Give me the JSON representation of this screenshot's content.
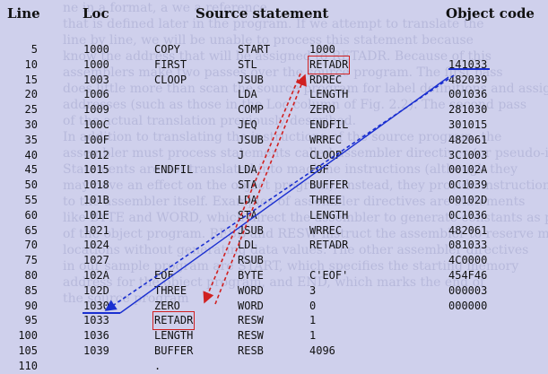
{
  "background_text": [
    "ne in a format, a we a reference",
    "that is defined later in the program. If we attempt to translate the",
    "line by line, we will be unable to process this statement because",
    "know the address that will be assigned to RETADR. Because of this",
    "assemblers make two passes over the source program. The first pass",
    "does little more than scan the source program for label definitions and assign",
    "addresses (such as those in the Loc column of Fig. 2.2). The second pass",
    "of the actual translation previously described.",
    "In addition to translating the instructions of the source program, the",
    "assembler must process statements called assembler directives (or pseudo-instructions).",
    "Statements are not translated into machine instructions (although they",
    "may have an effect on the object program). Instead, they provide instructions",
    "to the assembler itself. Examples of assembler directives are statements",
    "like BYTE and WORD, which direct the assembler to generate constants as part",
    "of the object program. RESB and RESW instruct the assembler to reserve memory",
    "locations without generating data values. The other assembler directives",
    "in our sample program are START, which specifies the starting memory",
    "address for the object program, and END, which marks the end of",
    "the source program"
  ],
  "headers": {
    "line": "Line",
    "loc": "Loc",
    "source": "Source statement",
    "object": "Object code"
  },
  "rows": [
    {
      "line": "5",
      "loc": "1000",
      "label": "COPY",
      "op": "START",
      "operand": "1000",
      "obj": ""
    },
    {
      "line": "10",
      "loc": "1000",
      "label": "FIRST",
      "op": "STL",
      "operand": "RETADR",
      "obj": "141033"
    },
    {
      "line": "15",
      "loc": "1003",
      "label": "CLOOP",
      "op": "JSUB",
      "operand": "RDREC",
      "obj": "482039"
    },
    {
      "line": "20",
      "loc": "1006",
      "label": "",
      "op": "LDA",
      "operand": "LENGTH",
      "obj": "001036"
    },
    {
      "line": "25",
      "loc": "1009",
      "label": "",
      "op": "COMP",
      "operand": "ZERO",
      "obj": "281030"
    },
    {
      "line": "30",
      "loc": "100C",
      "label": "",
      "op": "JEQ",
      "operand": "ENDFIL",
      "obj": "301015"
    },
    {
      "line": "35",
      "loc": "100F",
      "label": "",
      "op": "JSUB",
      "operand": "WRREC",
      "obj": "482061"
    },
    {
      "line": "40",
      "loc": "1012",
      "label": "",
      "op": "J",
      "operand": "CLOOP",
      "obj": "3C1003"
    },
    {
      "line": "45",
      "loc": "1015",
      "label": "ENDFIL",
      "op": "LDA",
      "operand": "EOF",
      "obj": "00102A"
    },
    {
      "line": "50",
      "loc": "1018",
      "label": "",
      "op": "STA",
      "operand": "BUFFER",
      "obj": "0C1039"
    },
    {
      "line": "55",
      "loc": "101B",
      "label": "",
      "op": "LDA",
      "operand": "THREE",
      "obj": "00102D"
    },
    {
      "line": "60",
      "loc": "101E",
      "label": "",
      "op": "STA",
      "operand": "LENGTH",
      "obj": "0C1036"
    },
    {
      "line": "65",
      "loc": "1021",
      "label": "",
      "op": "JSUB",
      "operand": "WRREC",
      "obj": "482061"
    },
    {
      "line": "70",
      "loc": "1024",
      "label": "",
      "op": "LDL",
      "operand": "RETADR",
      "obj": "081033"
    },
    {
      "line": "75",
      "loc": "1027",
      "label": "",
      "op": "RSUB",
      "operand": "",
      "obj": "4C0000"
    },
    {
      "line": "80",
      "loc": "102A",
      "label": "EOF",
      "op": "BYTE",
      "operand": "C'EOF'",
      "obj": "454F46"
    },
    {
      "line": "85",
      "loc": "102D",
      "label": "THREE",
      "op": "WORD",
      "operand": "3",
      "obj": "000003"
    },
    {
      "line": "90",
      "loc": "1030",
      "label": "ZERO",
      "op": "WORD",
      "operand": "0",
      "obj": "000000"
    },
    {
      "line": "95",
      "loc": "1033",
      "label": "RETADR",
      "op": "RESW",
      "operand": "1",
      "obj": ""
    },
    {
      "line": "100",
      "loc": "1036",
      "label": "LENGTH",
      "op": "RESW",
      "operand": "1",
      "obj": ""
    },
    {
      "line": "105",
      "loc": "1039",
      "label": "BUFFER",
      "op": "RESB",
      "operand": "4096",
      "obj": ""
    },
    {
      "line": "110",
      "loc": "",
      "label": ".",
      "op": "",
      "operand": "",
      "obj": ""
    }
  ],
  "colors": {
    "background": "#cfd0ec",
    "highlight_box": "#d02020",
    "blue_arrow": "#1a2fd0",
    "red_arrow": "#d02020"
  }
}
